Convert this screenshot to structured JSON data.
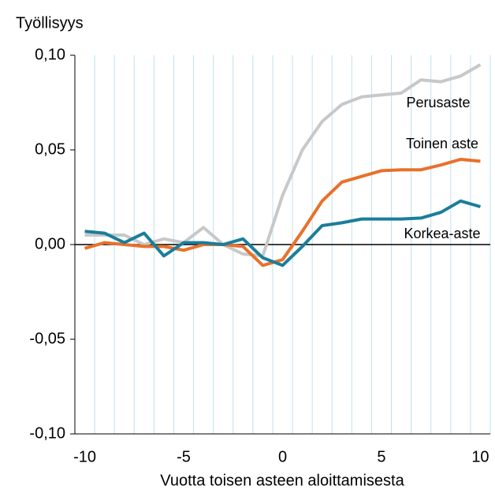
{
  "chart_data": {
    "type": "line",
    "y_label": "Työllisyys",
    "x_label": "Vuotta toisen asteen aloittamisesta",
    "categories": [
      "-10",
      null,
      null,
      null,
      null,
      "-5",
      null,
      null,
      null,
      null,
      "0",
      null,
      null,
      null,
      null,
      "5",
      null,
      null,
      null,
      null,
      "10"
    ],
    "ylim": [
      -0.1,
      0.1
    ],
    "yticks": [
      {
        "value": 0.1,
        "label": "0,10"
      },
      {
        "value": 0.05,
        "label": "0,05"
      },
      {
        "value": 0,
        "label": "0,00"
      },
      {
        "value": -0.05,
        "label": "-0,05"
      },
      {
        "value": -0.1,
        "label": "-0,10"
      }
    ],
    "grid": true,
    "series": [
      {
        "name": "Perusaste",
        "color": "#c8c8c8",
        "values": [
          0.005,
          0.005,
          0.005,
          0.0,
          0.003,
          0.001,
          0.009,
          0.0,
          -0.005,
          -0.006,
          0.026,
          0.05,
          0.065,
          0.074,
          0.078,
          0.079,
          0.08,
          0.087,
          0.086,
          0.089,
          0.095
        ]
      },
      {
        "name": "Toinen aste",
        "color": "#e8712b",
        "values": [
          -0.002,
          0.001,
          0.0,
          -0.001,
          -0.001,
          -0.003,
          0.0,
          0.0,
          -0.001,
          -0.011,
          -0.008,
          0.007,
          0.023,
          0.033,
          0.036,
          0.039,
          0.0395,
          0.0395,
          0.042,
          0.045,
          0.044
        ]
      },
      {
        "name": "Korkea-aste",
        "color": "#1a7e9b",
        "values": [
          0.007,
          0.006,
          0.001,
          0.006,
          -0.006,
          0.001,
          0.001,
          0.0,
          0.003,
          -0.007,
          -0.011,
          -0.001,
          0.01,
          0.0115,
          0.0135,
          0.0135,
          0.0135,
          0.014,
          0.017,
          0.023,
          0.02
        ]
      }
    ]
  }
}
